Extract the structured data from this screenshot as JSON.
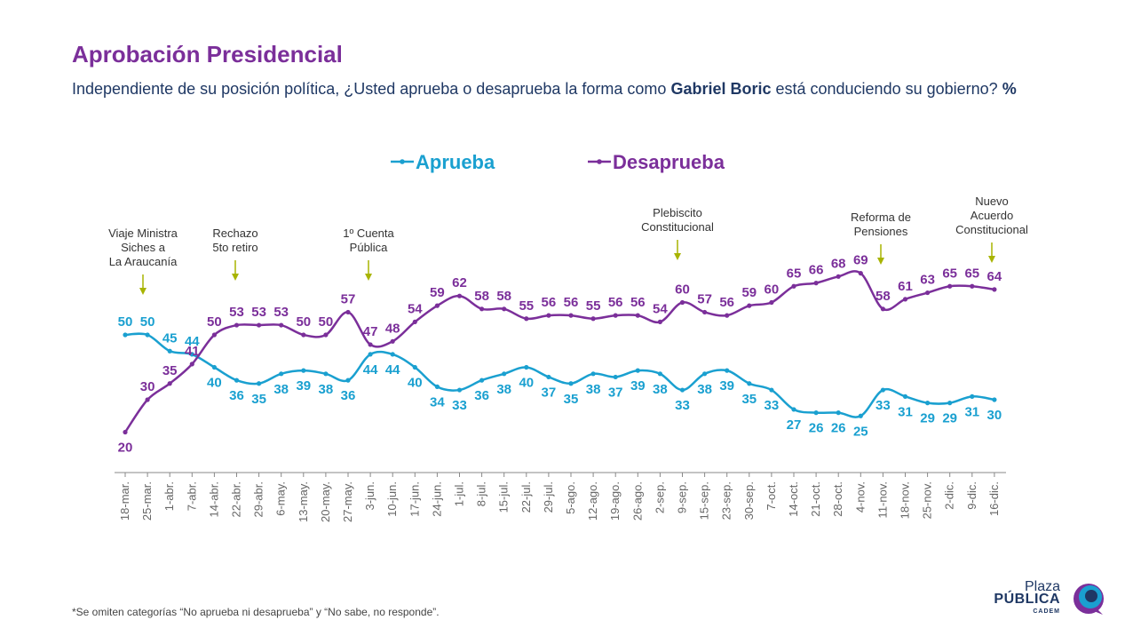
{
  "header": {
    "title": "Aprobación Presidencial",
    "subtitle_pre": "Independiente de su posición política, ¿Usted aprueba o desaprueba la forma como ",
    "subtitle_bold": "Gabriel Boric",
    "subtitle_post": " está conduciendo su gobierno? ",
    "subtitle_unit": "%"
  },
  "footnote": "*Se omiten categorías “No aprueba ni desaprueba” y “No sabe, no responde”.",
  "logo": {
    "line1": "Plaza",
    "line2": "PÚBLICA",
    "line3": "CADEM"
  },
  "colors": {
    "aprueba": "#1aa0d0",
    "desaprueba": "#7b2f9a",
    "annotation": "#a8b400",
    "title": "#7b2f9a",
    "text": "#1f3864"
  },
  "chart_data": {
    "type": "line",
    "categories": [
      "18-mar.",
      "25-mar.",
      "1-abr.",
      "7-abr.",
      "14-abr.",
      "22-abr.",
      "29-abr.",
      "6-may.",
      "13-may.",
      "20-may.",
      "27-may.",
      "3-jun.",
      "10-jun.",
      "17-jun.",
      "24-jun.",
      "1-jul.",
      "8-jul.",
      "15-jul.",
      "22-jul.",
      "29-jul.",
      "5-ago.",
      "12-ago.",
      "19-ago.",
      "26-ago.",
      "2-sep.",
      "9-sep.",
      "15-sep.",
      "23-sep.",
      "30-sep.",
      "7-oct.",
      "14-oct.",
      "21-oct.",
      "28-oct.",
      "4-nov.",
      "11-nov.",
      "18-nov.",
      "25-nov.",
      "2-dic.",
      "9-dic.",
      "16-dic."
    ],
    "series": [
      {
        "name": "Aprueba",
        "color": "#1aa0d0",
        "values": [
          50,
          50,
          45,
          44,
          40,
          36,
          35,
          38,
          39,
          38,
          36,
          44,
          44,
          40,
          34,
          33,
          36,
          38,
          40,
          37,
          35,
          38,
          37,
          39,
          38,
          33,
          38,
          39,
          35,
          33,
          27,
          26,
          26,
          25,
          33,
          31,
          29,
          29,
          31,
          30
        ]
      },
      {
        "name": "Desaprueba",
        "color": "#7b2f9a",
        "values": [
          20,
          30,
          35,
          41,
          50,
          53,
          53,
          53,
          50,
          50,
          57,
          47,
          48,
          54,
          59,
          62,
          58,
          58,
          55,
          56,
          56,
          55,
          56,
          56,
          54,
          60,
          57,
          56,
          59,
          60,
          65,
          66,
          68,
          69,
          58,
          61,
          63,
          65,
          65,
          64
        ]
      }
    ],
    "annotations": [
      {
        "category": "25-mar.",
        "lines": [
          "Viaje Ministra",
          "Siches a",
          "La Araucanía"
        ]
      },
      {
        "category": "22-abr.",
        "lines": [
          "Rechazo",
          "5to retiro"
        ]
      },
      {
        "category": "3-jun.",
        "lines": [
          "1º Cuenta",
          "Pública"
        ]
      },
      {
        "category": "9-sep.",
        "lines": [
          "Plebiscito",
          "Constitucional"
        ]
      },
      {
        "category": "11-nov.",
        "lines": [
          "Reforma de",
          "Pensiones"
        ]
      },
      {
        "category": "16-dic.",
        "lines": [
          "Nuevo",
          "Acuerdo",
          "Constitucional"
        ]
      }
    ],
    "legend_position": "top-center",
    "grid": false
  }
}
